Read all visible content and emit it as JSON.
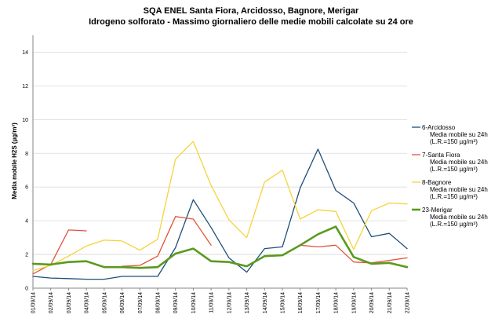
{
  "chart_data": {
    "type": "line",
    "title": "SQA ENEL Santa Fiora, Arcidosso, Bagnore, Merigar",
    "subtitle": "Idrogeno solforato - Massimo giornaliero delle medie mobili calcolate su 24 ore",
    "xlabel": "",
    "ylabel": "Media mobile H2S (µg/m³)",
    "ylim": [
      0,
      15
    ],
    "yticks": [
      0,
      2,
      4,
      6,
      8,
      10,
      12,
      14
    ],
    "grid": "horizontal",
    "legend_position": "right",
    "categories": [
      "01/09/14",
      "02/09/14",
      "03/09/14",
      "04/09/14",
      "05/09/14",
      "06/09/14",
      "07/09/14",
      "08/09/14",
      "09/09/14",
      "10/09/14",
      "11/09/14",
      "12/09/14",
      "13/09/14",
      "14/09/14",
      "15/09/14",
      "16/09/14",
      "17/09/14",
      "18/09/14",
      "19/09/14",
      "20/09/14",
      "21/09/14",
      "22/09/14"
    ],
    "series": [
      {
        "name": "6-Arcidosso",
        "legend_lines": [
          "6-Arcidosso",
          "Media mobile su 24h",
          "(L.R.=150 µg/m³)"
        ],
        "color": "#1f4e79",
        "width": 1.3,
        "values": [
          0.7,
          0.6,
          0.57,
          0.53,
          0.53,
          0.7,
          0.7,
          0.7,
          2.4,
          5.25,
          3.6,
          1.8,
          0.95,
          2.35,
          2.45,
          5.95,
          8.25,
          5.8,
          5.05,
          3.05,
          3.25,
          2.35
        ]
      },
      {
        "name": "7-Santa Fiora",
        "legend_lines": [
          "7-Santa Fiora",
          "Media mobile su 24h",
          "(L.R.=150 µg/m³)"
        ],
        "color": "#e0553a",
        "width": 1.3,
        "values": [
          0.85,
          1.4,
          3.45,
          3.4,
          null,
          1.3,
          1.35,
          1.9,
          4.25,
          4.1,
          2.55,
          null,
          null,
          null,
          null,
          2.55,
          2.45,
          2.55,
          1.55,
          1.5,
          1.65,
          1.8
        ]
      },
      {
        "name": "8-Bagnore",
        "legend_lines": [
          "8-Bagnore",
          "Media mobile su 24h",
          "(L.R.=150 µg/m³)"
        ],
        "color": "#f5d33c",
        "width": 1.3,
        "values": [
          1.05,
          1.35,
          1.9,
          2.5,
          2.85,
          2.8,
          2.25,
          2.9,
          7.65,
          8.7,
          6.1,
          4.05,
          3.0,
          6.3,
          7.0,
          4.1,
          4.65,
          4.55,
          2.3,
          4.6,
          5.05,
          5.0
        ]
      },
      {
        "name": "23-Merigar",
        "legend_lines": [
          "23-Merigar",
          "Media mobile su 24h",
          "(L.R.=150 µg/m³)"
        ],
        "color": "#5a9a1e",
        "width": 2.6,
        "values": [
          1.45,
          1.4,
          1.55,
          1.6,
          1.25,
          1.25,
          1.2,
          1.25,
          2.05,
          2.35,
          1.6,
          1.55,
          1.3,
          1.9,
          1.95,
          2.55,
          3.2,
          3.65,
          1.85,
          1.45,
          1.5,
          1.25
        ]
      }
    ]
  }
}
